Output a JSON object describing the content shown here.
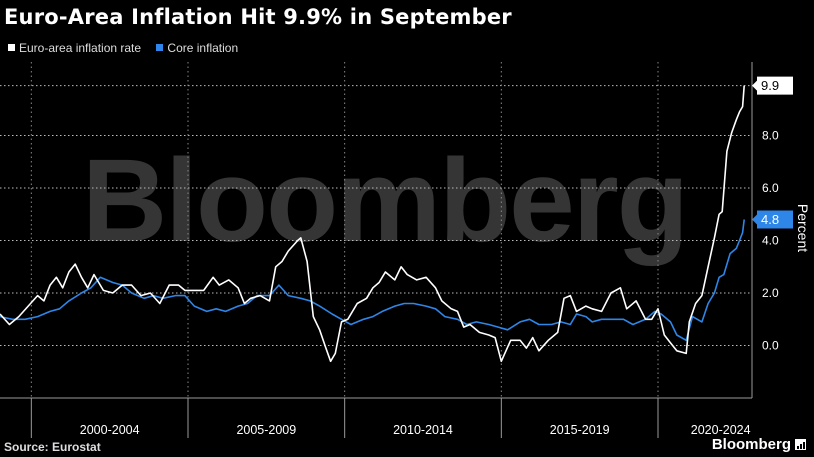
{
  "title": "Euro-Area Inflation Hit 9.9% in September",
  "legend": [
    {
      "label": "Euro-area inflation rate",
      "color": "#ffffff"
    },
    {
      "label": "Core inflation",
      "color": "#2e86e8"
    }
  ],
  "source": "Source: Eurostat",
  "brand": "Bloomberg",
  "watermark": "Bloomberg",
  "chart_data": {
    "type": "line",
    "title": "Euro-Area Inflation Hit 9.9% in September",
    "xlabel": "",
    "ylabel": "Percent",
    "ylim": [
      -2,
      10.8
    ],
    "xlim": [
      1999.0,
      2023.0
    ],
    "yticks": [
      0.0,
      2.0,
      4.0,
      6.0,
      8.0
    ],
    "ytick_labels": [
      "0.0",
      "2.0",
      "4.0",
      "6.0",
      "8.0"
    ],
    "xtick_labels": [
      "2000-2004",
      "2005-2009",
      "2010-2014",
      "2015-2019",
      "2020-2024"
    ],
    "xtick_centers": [
      2002.5,
      2007.5,
      2012.5,
      2017.5,
      2022.0
    ],
    "xtick_bounds": [
      2000,
      2005,
      2010,
      2015,
      2020
    ],
    "end_labels": [
      {
        "text": "9.9",
        "value": 9.9,
        "series": "Euro-area inflation rate"
      },
      {
        "text": "4.8",
        "value": 4.8,
        "series": "Core inflation"
      }
    ],
    "series": [
      {
        "name": "Euro-area inflation rate",
        "color": "#ffffff",
        "points": [
          [
            1999.0,
            1.2
          ],
          [
            1999.3,
            0.8
          ],
          [
            1999.6,
            1.1
          ],
          [
            1999.9,
            1.5
          ],
          [
            2000.2,
            1.9
          ],
          [
            2000.4,
            1.7
          ],
          [
            2000.6,
            2.3
          ],
          [
            2000.8,
            2.6
          ],
          [
            2001.0,
            2.2
          ],
          [
            2001.2,
            2.8
          ],
          [
            2001.4,
            3.1
          ],
          [
            2001.6,
            2.6
          ],
          [
            2001.8,
            2.2
          ],
          [
            2002.0,
            2.7
          ],
          [
            2002.3,
            2.1
          ],
          [
            2002.6,
            2.0
          ],
          [
            2002.9,
            2.3
          ],
          [
            2003.2,
            2.3
          ],
          [
            2003.5,
            1.9
          ],
          [
            2003.8,
            2.0
          ],
          [
            2004.1,
            1.6
          ],
          [
            2004.4,
            2.3
          ],
          [
            2004.7,
            2.3
          ],
          [
            2004.9,
            2.1
          ],
          [
            2005.2,
            2.1
          ],
          [
            2005.5,
            2.1
          ],
          [
            2005.8,
            2.6
          ],
          [
            2006.0,
            2.3
          ],
          [
            2006.3,
            2.5
          ],
          [
            2006.6,
            2.2
          ],
          [
            2006.8,
            1.6
          ],
          [
            2007.0,
            1.8
          ],
          [
            2007.3,
            1.9
          ],
          [
            2007.6,
            1.7
          ],
          [
            2007.8,
            3.0
          ],
          [
            2008.0,
            3.2
          ],
          [
            2008.2,
            3.6
          ],
          [
            2008.5,
            4.0
          ],
          [
            2008.6,
            4.1
          ],
          [
            2008.8,
            3.2
          ],
          [
            2009.0,
            1.1
          ],
          [
            2009.2,
            0.6
          ],
          [
            2009.4,
            -0.1
          ],
          [
            2009.55,
            -0.6
          ],
          [
            2009.7,
            -0.3
          ],
          [
            2009.9,
            0.9
          ],
          [
            2010.1,
            1.0
          ],
          [
            2010.4,
            1.6
          ],
          [
            2010.7,
            1.8
          ],
          [
            2010.9,
            2.2
          ],
          [
            2011.1,
            2.4
          ],
          [
            2011.3,
            2.8
          ],
          [
            2011.6,
            2.5
          ],
          [
            2011.8,
            3.0
          ],
          [
            2012.0,
            2.7
          ],
          [
            2012.3,
            2.5
          ],
          [
            2012.6,
            2.6
          ],
          [
            2012.9,
            2.2
          ],
          [
            2013.1,
            1.7
          ],
          [
            2013.4,
            1.4
          ],
          [
            2013.6,
            1.3
          ],
          [
            2013.8,
            0.7
          ],
          [
            2014.0,
            0.8
          ],
          [
            2014.3,
            0.5
          ],
          [
            2014.6,
            0.4
          ],
          [
            2014.8,
            0.3
          ],
          [
            2015.0,
            -0.6
          ],
          [
            2015.3,
            0.2
          ],
          [
            2015.6,
            0.2
          ],
          [
            2015.8,
            -0.1
          ],
          [
            2016.0,
            0.3
          ],
          [
            2016.2,
            -0.2
          ],
          [
            2016.5,
            0.2
          ],
          [
            2016.8,
            0.5
          ],
          [
            2017.0,
            1.8
          ],
          [
            2017.2,
            1.9
          ],
          [
            2017.4,
            1.3
          ],
          [
            2017.7,
            1.5
          ],
          [
            2017.9,
            1.4
          ],
          [
            2018.2,
            1.3
          ],
          [
            2018.5,
            2.0
          ],
          [
            2018.8,
            2.2
          ],
          [
            2019.0,
            1.4
          ],
          [
            2019.3,
            1.7
          ],
          [
            2019.6,
            1.0
          ],
          [
            2019.8,
            1.0
          ],
          [
            2020.0,
            1.4
          ],
          [
            2020.2,
            0.4
          ],
          [
            2020.4,
            0.1
          ],
          [
            2020.6,
            -0.2
          ],
          [
            2020.9,
            -0.3
          ],
          [
            2021.0,
            0.9
          ],
          [
            2021.2,
            1.6
          ],
          [
            2021.4,
            1.9
          ],
          [
            2021.6,
            3.0
          ],
          [
            2021.8,
            4.1
          ],
          [
            2021.95,
            5.0
          ],
          [
            2022.05,
            5.1
          ],
          [
            2022.2,
            7.4
          ],
          [
            2022.35,
            8.1
          ],
          [
            2022.5,
            8.6
          ],
          [
            2022.6,
            8.9
          ],
          [
            2022.7,
            9.1
          ],
          [
            2022.75,
            9.9
          ]
        ]
      },
      {
        "name": "Core inflation",
        "color": "#2e86e8",
        "points": [
          [
            1999.0,
            1.1
          ],
          [
            1999.4,
            1.0
          ],
          [
            1999.8,
            1.0
          ],
          [
            2000.2,
            1.1
          ],
          [
            2000.6,
            1.3
          ],
          [
            2000.9,
            1.4
          ],
          [
            2001.2,
            1.7
          ],
          [
            2001.6,
            2.0
          ],
          [
            2001.9,
            2.2
          ],
          [
            2002.2,
            2.6
          ],
          [
            2002.6,
            2.4
          ],
          [
            2002.9,
            2.3
          ],
          [
            2003.2,
            2.0
          ],
          [
            2003.6,
            1.8
          ],
          [
            2003.9,
            1.9
          ],
          [
            2004.2,
            1.8
          ],
          [
            2004.6,
            1.9
          ],
          [
            2004.9,
            1.9
          ],
          [
            2005.2,
            1.5
          ],
          [
            2005.6,
            1.3
          ],
          [
            2005.9,
            1.4
          ],
          [
            2006.2,
            1.3
          ],
          [
            2006.6,
            1.5
          ],
          [
            2006.9,
            1.6
          ],
          [
            2007.2,
            1.9
          ],
          [
            2007.6,
            1.9
          ],
          [
            2007.9,
            2.3
          ],
          [
            2008.2,
            1.9
          ],
          [
            2008.6,
            1.8
          ],
          [
            2008.9,
            1.7
          ],
          [
            2009.2,
            1.5
          ],
          [
            2009.6,
            1.2
          ],
          [
            2009.9,
            1.0
          ],
          [
            2010.2,
            0.8
          ],
          [
            2010.6,
            1.0
          ],
          [
            2010.9,
            1.1
          ],
          [
            2011.2,
            1.3
          ],
          [
            2011.6,
            1.5
          ],
          [
            2011.9,
            1.6
          ],
          [
            2012.2,
            1.6
          ],
          [
            2012.6,
            1.5
          ],
          [
            2012.9,
            1.4
          ],
          [
            2013.2,
            1.1
          ],
          [
            2013.6,
            1.0
          ],
          [
            2013.9,
            0.8
          ],
          [
            2014.2,
            0.9
          ],
          [
            2014.6,
            0.8
          ],
          [
            2014.9,
            0.7
          ],
          [
            2015.2,
            0.6
          ],
          [
            2015.6,
            0.9
          ],
          [
            2015.9,
            1.0
          ],
          [
            2016.2,
            0.8
          ],
          [
            2016.6,
            0.8
          ],
          [
            2016.9,
            0.9
          ],
          [
            2017.2,
            0.8
          ],
          [
            2017.4,
            1.2
          ],
          [
            2017.7,
            1.1
          ],
          [
            2017.9,
            0.9
          ],
          [
            2018.2,
            1.0
          ],
          [
            2018.6,
            1.0
          ],
          [
            2018.9,
            1.0
          ],
          [
            2019.2,
            0.8
          ],
          [
            2019.6,
            1.0
          ],
          [
            2019.9,
            1.3
          ],
          [
            2020.1,
            1.2
          ],
          [
            2020.4,
            0.9
          ],
          [
            2020.6,
            0.4
          ],
          [
            2020.9,
            0.2
          ],
          [
            2021.1,
            1.1
          ],
          [
            2021.4,
            0.9
          ],
          [
            2021.6,
            1.6
          ],
          [
            2021.8,
            2.0
          ],
          [
            2021.95,
            2.6
          ],
          [
            2022.1,
            2.7
          ],
          [
            2022.3,
            3.5
          ],
          [
            2022.5,
            3.7
          ],
          [
            2022.6,
            4.0
          ],
          [
            2022.7,
            4.3
          ],
          [
            2022.75,
            4.8
          ]
        ]
      }
    ]
  }
}
